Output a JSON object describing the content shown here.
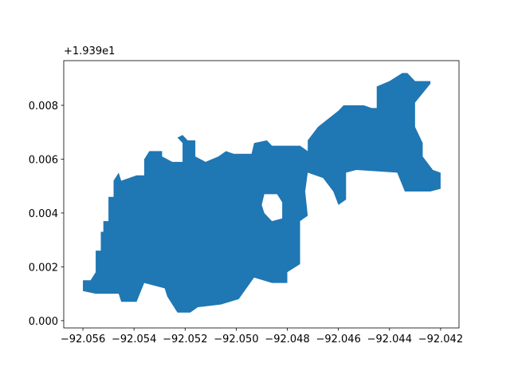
{
  "chart_data": {
    "type": "polygon",
    "color": "#1f77b4",
    "y_offset_text": "+1.939e1",
    "xlim": [
      -92.05675,
      -92.04128
    ],
    "ylim": [
      -0.00027,
      0.00966
    ],
    "xticks": [
      {
        "value": -92.056,
        "label": "−92.056"
      },
      {
        "value": -92.054,
        "label": "−92.054"
      },
      {
        "value": -92.052,
        "label": "−92.052"
      },
      {
        "value": -92.05,
        "label": "−92.050"
      },
      {
        "value": -92.048,
        "label": "−92.048"
      },
      {
        "value": -92.046,
        "label": "−92.046"
      },
      {
        "value": -92.044,
        "label": "−92.044"
      },
      {
        "value": -92.042,
        "label": "−92.042"
      }
    ],
    "yticks": [
      {
        "value": 0,
        "label": "0.000"
      },
      {
        "value": 0.002,
        "label": "0.002"
      },
      {
        "value": 0.004,
        "label": "0.004"
      },
      {
        "value": 0.006,
        "label": "0.006"
      },
      {
        "value": 0.008,
        "label": "0.008"
      }
    ],
    "x": [
      -92.056,
      -92.056,
      -92.0557,
      -92.0555,
      -92.0555,
      -92.0553,
      -92.0553,
      -92.0552,
      -92.0552,
      -92.055,
      -92.055,
      -92.0548,
      -92.0548,
      -92.0546,
      -92.0545,
      -92.0539,
      -92.0536,
      -92.0536,
      -92.0534,
      -92.0529,
      -92.0529,
      -92.0525,
      -92.0521,
      -92.0521,
      -92.0523,
      -92.0521,
      -92.0519,
      -92.0516,
      -92.0516,
      -92.0512,
      -92.0507,
      -92.0504,
      -92.0501,
      -92.0494,
      -92.0493,
      -92.0488,
      -92.0486,
      -92.0475,
      -92.0472,
      -92.0472,
      -92.0468,
      -92.046,
      -92.0458,
      -92.045,
      -92.0447,
      -92.0445,
      -92.0445,
      -92.044,
      -92.0435,
      -92.0433,
      -92.043,
      -92.0424,
      -92.0424,
      -92.043,
      -92.043,
      -92.0427,
      -92.0427,
      -92.0423,
      -92.042,
      -92.042,
      -92.0424,
      -92.0434,
      -92.0437,
      -92.0453,
      -92.0457,
      -92.0457,
      -92.046,
      -92.0462,
      -92.0466,
      -92.0472,
      -92.0473,
      -92.0472,
      -92.0475,
      -92.0475,
      -92.048,
      -92.048,
      -92.0486,
      -92.0493,
      -92.0499,
      -92.0506,
      -92.0515,
      -92.0518,
      -92.0523,
      -92.0527,
      -92.0528,
      -92.0536,
      -92.0539,
      -92.0545,
      -92.0546,
      -92.0555
    ],
    "y": [
      0.0011,
      0.0015,
      0.0015,
      0.0018,
      0.0026,
      0.0026,
      0.0033,
      0.0033,
      0.0037,
      0.0037,
      0.0046,
      0.0046,
      0.0052,
      0.0055,
      0.0052,
      0.0054,
      0.0054,
      0.006,
      0.0063,
      0.0063,
      0.0061,
      0.0059,
      0.0059,
      0.0066,
      0.0068,
      0.0069,
      0.0067,
      0.0067,
      0.0061,
      0.0059,
      0.0061,
      0.0063,
      0.0062,
      0.0062,
      0.0066,
      0.0067,
      0.0065,
      0.0065,
      0.0063,
      0.0067,
      0.0072,
      0.0078,
      0.008,
      0.008,
      0.0079,
      0.0079,
      0.0087,
      0.0089,
      0.0092,
      0.0092,
      0.0089,
      0.0089,
      0.0088,
      0.0081,
      0.0072,
      0.0066,
      0.0061,
      0.0056,
      0.0055,
      0.0049,
      0.0048,
      0.0048,
      0.0055,
      0.0056,
      0.0055,
      0.0045,
      0.0043,
      0.0048,
      0.0053,
      0.0055,
      0.0048,
      0.0039,
      0.0037,
      0.0021,
      0.0018,
      0.0014,
      0.0014,
      0.0016,
      0.0008,
      0.0006,
      0.0005,
      0.0003,
      0.0003,
      0.0009,
      0.0012,
      0.0014,
      0.0007,
      0.0007,
      0.001,
      0.001
    ],
    "holes": [
      {
        "x": [
          -92.0489,
          -92.0484,
          -92.0482,
          -92.0482,
          -92.0486,
          -92.0489,
          -92.049
        ],
        "y": [
          0.0047,
          0.0047,
          0.0044,
          0.0038,
          0.0037,
          0.004,
          0.0043
        ]
      }
    ]
  }
}
